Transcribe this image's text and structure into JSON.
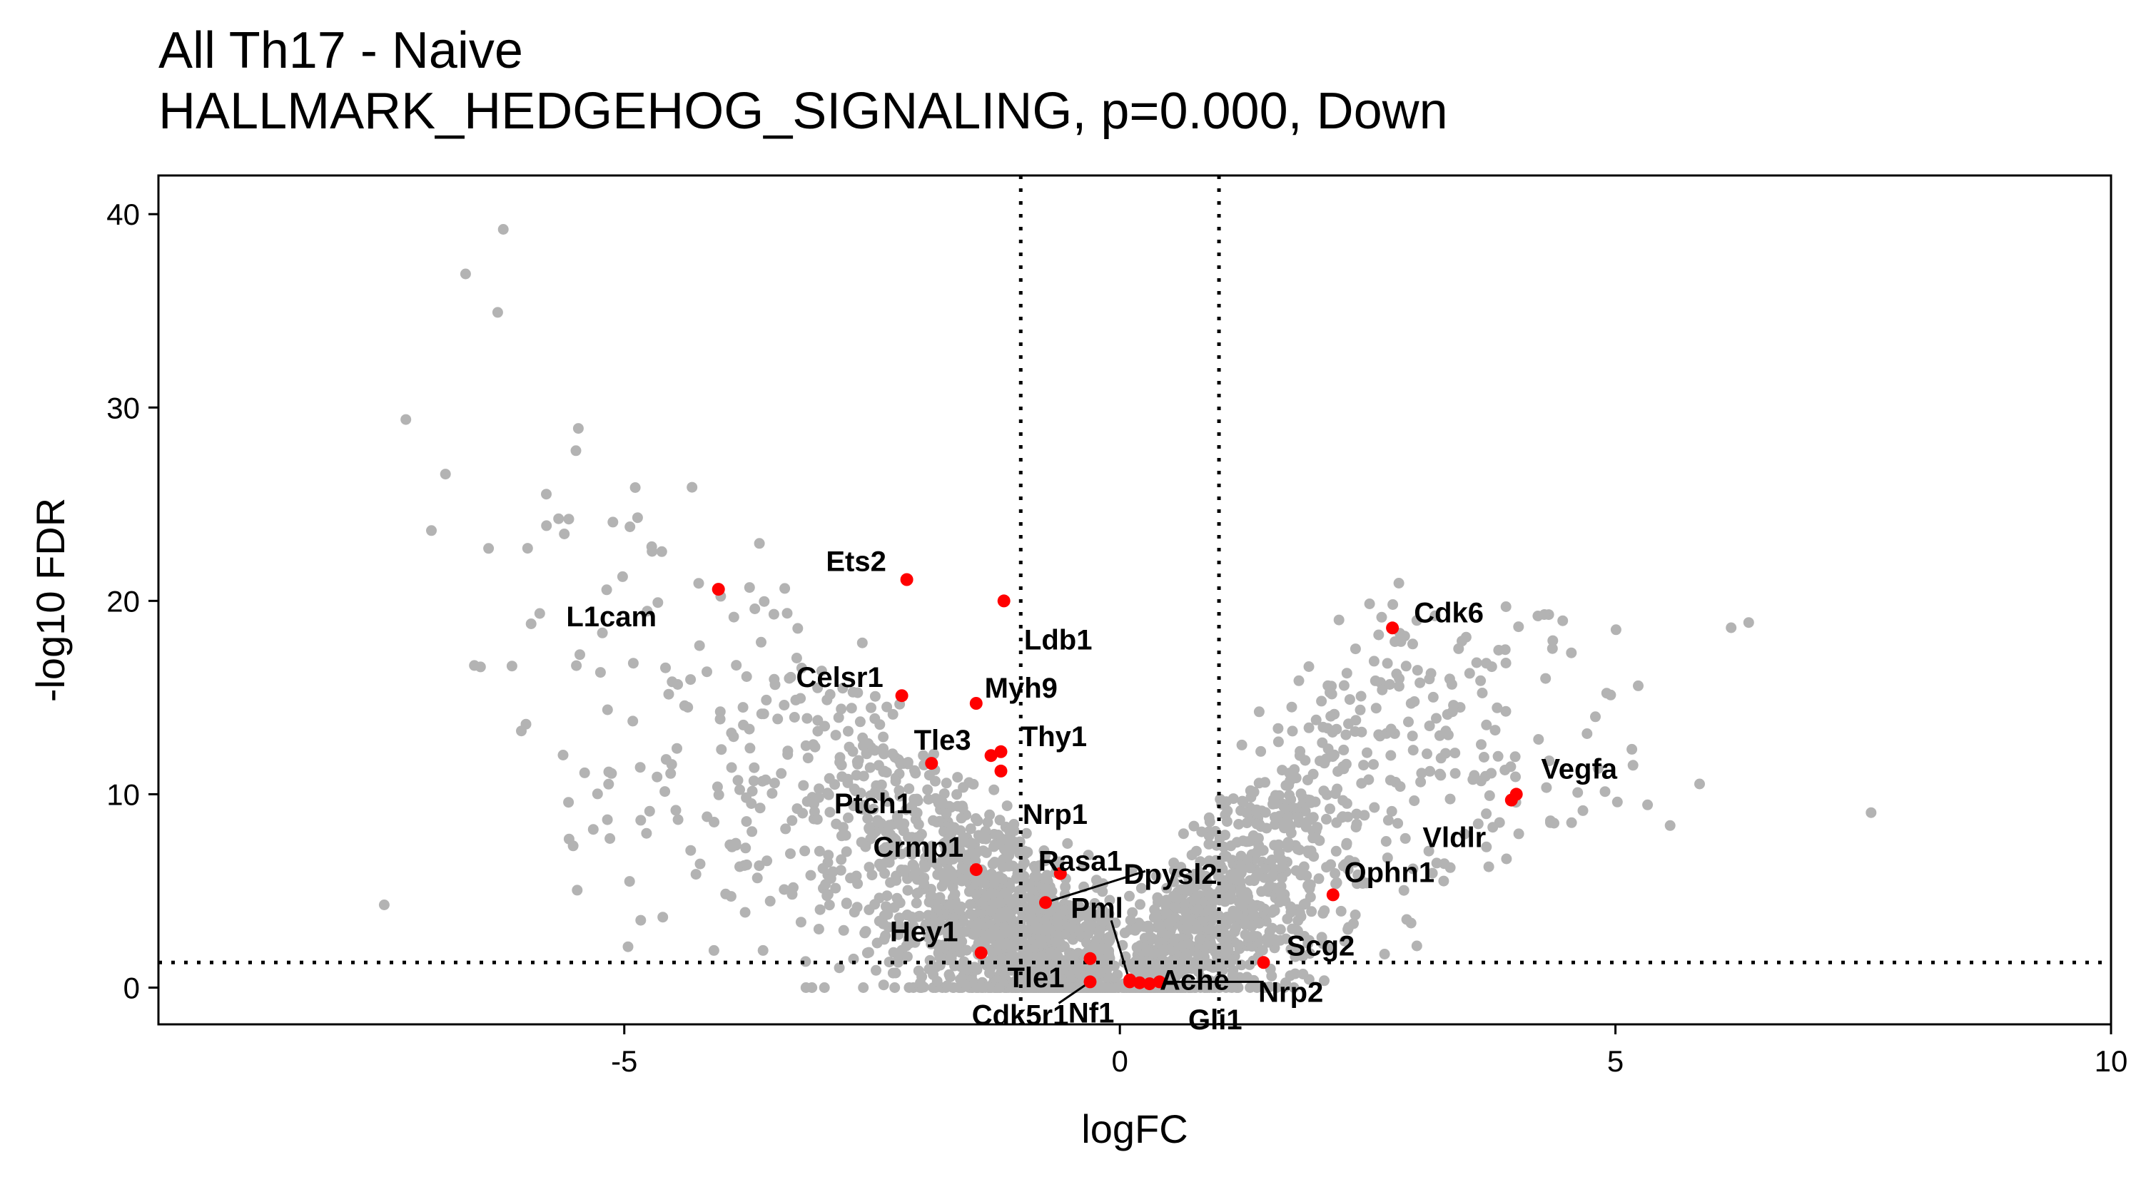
{
  "chart_data": {
    "type": "scatter",
    "title": "All Th17 - Naive",
    "subtitle": "HALLMARK_HEDGEHOG_SIGNALING, p=0.000, Down",
    "xlabel": "logFC",
    "ylabel": "-log10 FDR",
    "xlim": [
      -9.7,
      10
    ],
    "ylim": [
      -1.9,
      42
    ],
    "x_ticks": [
      -5,
      0,
      5,
      10
    ],
    "y_ticks": [
      0,
      10,
      20,
      30,
      40
    ],
    "x_tick_labels": [
      "-5",
      "0",
      "5",
      "10"
    ],
    "y_tick_labels": [
      "0",
      "10",
      "20",
      "30",
      "40"
    ],
    "thresholds": {
      "logfc": [
        -1,
        1
      ],
      "neg_log10_fdr": 1.3
    },
    "grid": false,
    "background_color": "#b3b3b3",
    "highlight_color": "#ff0000",
    "background_genes": {
      "n": 3000
    },
    "highlighted_genes": [
      {
        "gene": "L1cam",
        "x": -4.05,
        "y": 20.6
      },
      {
        "gene": "Ets2",
        "x": -2.15,
        "y": 21.1
      },
      {
        "gene": "Ldb1",
        "x": -1.17,
        "y": 20.0
      },
      {
        "gene": "Celsr1",
        "x": -2.2,
        "y": 15.1
      },
      {
        "gene": "Myh9",
        "x": -1.45,
        "y": 14.7
      },
      {
        "gene": "Thy1",
        "x": -1.2,
        "y": 12.2
      },
      {
        "gene": "Tle3",
        "x": -1.3,
        "y": 12.0
      },
      {
        "gene": "Ptch1",
        "x": -1.9,
        "y": 11.6
      },
      {
        "gene": "Nrp1",
        "x": -1.2,
        "y": 11.2
      },
      {
        "gene": "Crmp1",
        "x": -1.45,
        "y": 6.1
      },
      {
        "gene": "Rasa1",
        "x": -0.6,
        "y": 5.9
      },
      {
        "gene": "Dpysl2",
        "x": -0.75,
        "y": 4.4
      },
      {
        "gene": "Hey1",
        "x": -1.4,
        "y": 1.8
      },
      {
        "gene": "Tle1",
        "x": -0.3,
        "y": 1.5
      },
      {
        "gene": "Cdk5r1",
        "x": -0.3,
        "y": 0.3
      },
      {
        "gene": "Nf1",
        "x": 0.1,
        "y": 0.4
      },
      {
        "gene": "Pml",
        "x": 0.1,
        "y": 0.3
      },
      {
        "gene": "Ache",
        "x": 0.2,
        "y": 0.25
      },
      {
        "gene": "Gli1",
        "x": 0.3,
        "y": 0.2
      },
      {
        "gene": "Nrp2",
        "x": 0.4,
        "y": 0.3
      },
      {
        "gene": "Scg2",
        "x": 1.45,
        "y": 1.3
      },
      {
        "gene": "Ophn1",
        "x": 2.15,
        "y": 4.8
      },
      {
        "gene": "Cdk6",
        "x": 2.75,
        "y": 18.6
      },
      {
        "gene": "Vegfa",
        "x": 4.0,
        "y": 10.0
      },
      {
        "gene": "Vldlr",
        "x": 3.95,
        "y": 9.7
      }
    ]
  }
}
